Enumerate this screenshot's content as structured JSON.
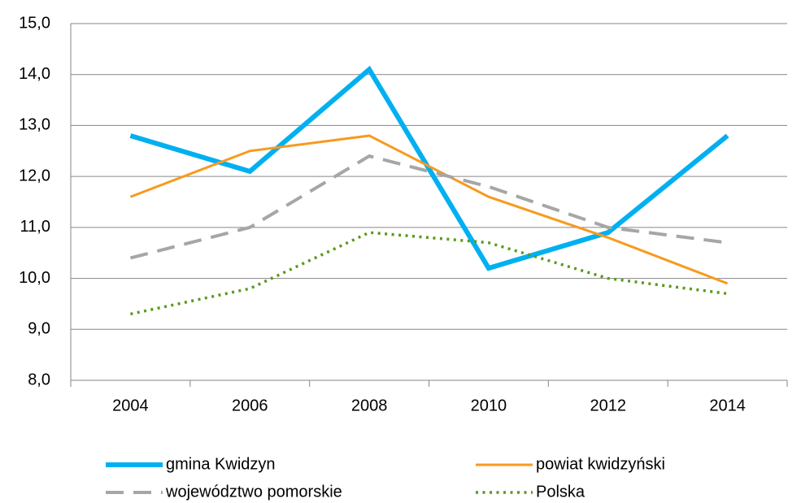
{
  "chart_data": {
    "type": "line",
    "categories": [
      "2004",
      "2006",
      "2008",
      "2010",
      "2012",
      "2014"
    ],
    "series": [
      {
        "name": "gmina Kwidzyn",
        "color": "#00b0f0",
        "style": "solid",
        "values": [
          12.8,
          12.1,
          14.1,
          10.2,
          10.9,
          12.8
        ]
      },
      {
        "name": "powiat kwidzyński",
        "color": "#f79a1f",
        "style": "solid",
        "values": [
          11.6,
          12.5,
          12.8,
          11.6,
          10.8,
          9.9
        ]
      },
      {
        "name": "województwo pomorskie",
        "color": "#a6a6a6",
        "style": "dashed",
        "values": [
          10.4,
          11.0,
          12.4,
          11.8,
          11.0,
          10.7
        ]
      },
      {
        "name": "Polska",
        "color": "#5a9a1a",
        "style": "dotted",
        "values": [
          9.3,
          9.8,
          10.9,
          10.7,
          10.0,
          9.7
        ]
      }
    ],
    "ylim": [
      8,
      15
    ],
    "yticks": [
      {
        "value": 8,
        "label": "8,0"
      },
      {
        "value": 9,
        "label": "9,0"
      },
      {
        "value": 10,
        "label": "10,0"
      },
      {
        "value": 11,
        "label": "11,0"
      },
      {
        "value": 12,
        "label": "12,0"
      },
      {
        "value": 13,
        "label": "13,0"
      },
      {
        "value": 14,
        "label": "14,0"
      },
      {
        "value": 15,
        "label": "15,0"
      }
    ],
    "grid": true,
    "legend": "bottom"
  }
}
